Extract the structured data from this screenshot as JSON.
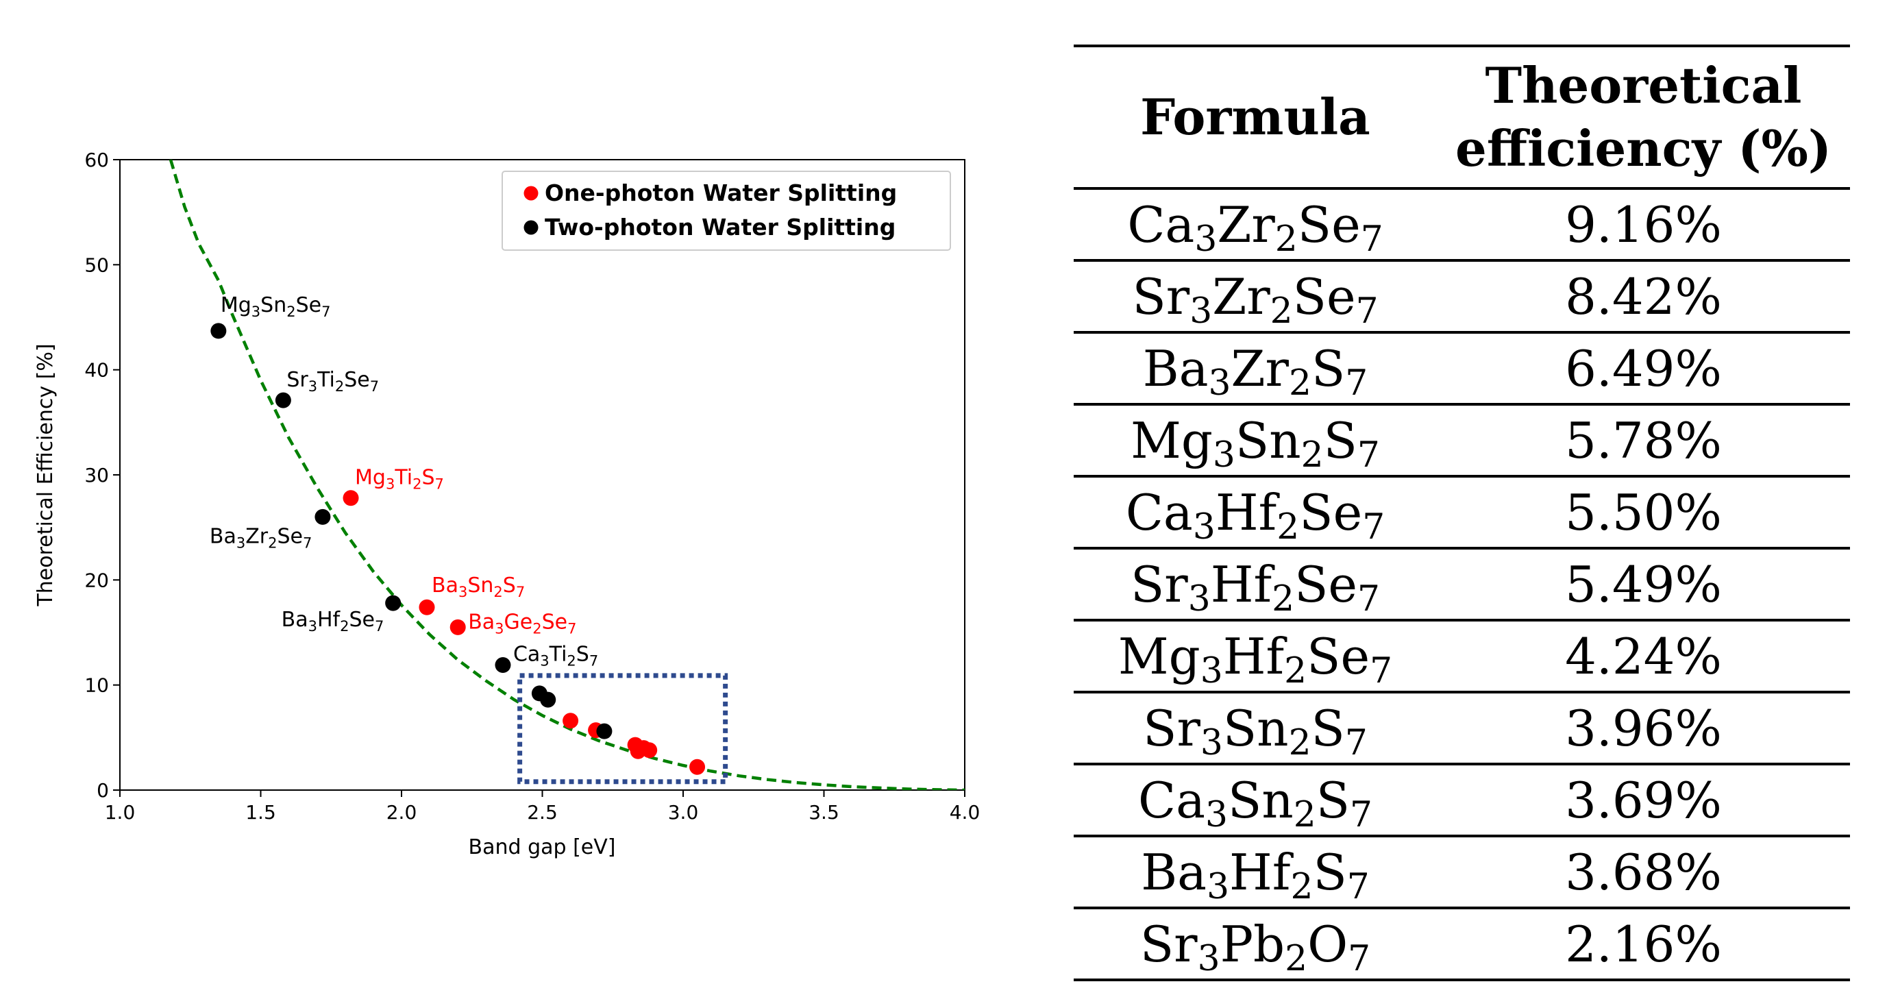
{
  "chart_data": {
    "type": "scatter",
    "xlabel": "Band gap [eV]",
    "ylabel": "Theoretical Efficiency [%]",
    "xlim": [
      1.0,
      4.0
    ],
    "ylim": [
      0,
      60
    ],
    "xticks": [
      "1.0",
      "1.5",
      "2.0",
      "2.5",
      "3.0",
      "3.5",
      "4.0"
    ],
    "yticks": [
      "0",
      "10",
      "20",
      "30",
      "40",
      "50",
      "60"
    ],
    "legend": {
      "placement": "top-right",
      "entries": [
        {
          "label": "One-photon Water Splitting",
          "color": "#ff0000"
        },
        {
          "label": "Two-photon Water Splitting",
          "color": "#000000"
        }
      ]
    },
    "curve": {
      "name": "theoretical limit",
      "style": "dashed",
      "color": "#008000",
      "x": [
        1.18,
        1.23,
        1.28,
        1.3,
        1.35,
        1.4,
        1.5,
        1.6,
        1.7,
        1.8,
        1.9,
        2.0,
        2.1,
        2.2,
        2.3,
        2.4,
        2.5,
        2.6,
        2.7,
        2.8,
        2.9,
        3.0,
        3.1,
        3.2,
        3.3,
        3.4,
        3.5,
        3.6,
        3.7,
        3.8,
        3.9,
        4.0
      ],
      "y": [
        60.0,
        55.5,
        52.0,
        51.0,
        48.5,
        45.2,
        39.0,
        33.5,
        28.8,
        24.5,
        20.8,
        17.6,
        14.8,
        12.4,
        10.4,
        8.6,
        7.1,
        5.8,
        4.7,
        3.8,
        3.0,
        2.35,
        1.8,
        1.35,
        1.0,
        0.72,
        0.5,
        0.32,
        0.2,
        0.1,
        0.04,
        0.0
      ]
    },
    "series": [
      {
        "name": "One-photon Water Splitting",
        "color": "#ff0000",
        "points": [
          {
            "x": 1.82,
            "y": 27.8,
            "label": "Mg3Ti2S7"
          },
          {
            "x": 2.09,
            "y": 17.4,
            "label": "Ba3Sn2S7"
          },
          {
            "x": 2.2,
            "y": 15.5,
            "label": "Ba3Ge2Se7"
          },
          {
            "x": 2.6,
            "y": 6.6,
            "label": ""
          },
          {
            "x": 2.69,
            "y": 5.7,
            "label": ""
          },
          {
            "x": 2.83,
            "y": 4.3,
            "label": ""
          },
          {
            "x": 2.84,
            "y": 3.7,
            "label": ""
          },
          {
            "x": 2.86,
            "y": 4.0,
            "label": ""
          },
          {
            "x": 2.88,
            "y": 3.8,
            "label": ""
          },
          {
            "x": 3.05,
            "y": 2.2,
            "label": ""
          }
        ]
      },
      {
        "name": "Two-photon Water Splitting",
        "color": "#000000",
        "points": [
          {
            "x": 1.35,
            "y": 43.7,
            "label": "Mg3Sn2Se7"
          },
          {
            "x": 1.58,
            "y": 37.1,
            "label": "Sr3Ti2Se7"
          },
          {
            "x": 1.72,
            "y": 26.0,
            "label": "Ba3Zr2Se7"
          },
          {
            "x": 1.97,
            "y": 17.8,
            "label": "Ba3Hf2Se7"
          },
          {
            "x": 2.36,
            "y": 11.9,
            "label": "Ca3Ti2S7"
          },
          {
            "x": 2.49,
            "y": 9.2,
            "label": ""
          },
          {
            "x": 2.52,
            "y": 8.6,
            "label": ""
          },
          {
            "x": 2.72,
            "y": 5.6,
            "label": ""
          }
        ]
      }
    ],
    "highlight_box": {
      "x": [
        2.42,
        3.15
      ],
      "y": [
        0.8,
        10.9
      ],
      "color": "#2e4a8e",
      "style": "dotted"
    }
  },
  "table": {
    "headers": [
      "Formula",
      "Theoretical efficiency (%)"
    ],
    "rows": [
      {
        "formula": [
          [
            "Ca",
            ""
          ],
          [
            "3",
            "sub"
          ],
          [
            "Zr",
            ""
          ],
          [
            "2",
            "sub"
          ],
          [
            "Se",
            ""
          ],
          [
            "7",
            "sub"
          ]
        ],
        "efficiency": "9.16%"
      },
      {
        "formula": [
          [
            "Sr",
            ""
          ],
          [
            "3",
            "sub"
          ],
          [
            "Zr",
            ""
          ],
          [
            "2",
            "sub"
          ],
          [
            "Se",
            ""
          ],
          [
            "7",
            "sub"
          ]
        ],
        "efficiency": "8.42%"
      },
      {
        "formula": [
          [
            "Ba",
            ""
          ],
          [
            "3",
            "sub"
          ],
          [
            "Zr",
            ""
          ],
          [
            "2",
            "sub"
          ],
          [
            "S",
            ""
          ],
          [
            "7",
            "sub"
          ]
        ],
        "efficiency": "6.49%"
      },
      {
        "formula": [
          [
            "Mg",
            ""
          ],
          [
            "3",
            "sub"
          ],
          [
            "Sn",
            ""
          ],
          [
            "2",
            "sub"
          ],
          [
            "S",
            ""
          ],
          [
            "7",
            "sub"
          ]
        ],
        "efficiency": "5.78%"
      },
      {
        "formula": [
          [
            "Ca",
            ""
          ],
          [
            "3",
            "sub"
          ],
          [
            "Hf",
            ""
          ],
          [
            "2",
            "sub"
          ],
          [
            "Se",
            ""
          ],
          [
            "7",
            "sub"
          ]
        ],
        "efficiency": "5.50%"
      },
      {
        "formula": [
          [
            "Sr",
            ""
          ],
          [
            "3",
            "sub"
          ],
          [
            "Hf",
            ""
          ],
          [
            "2",
            "sub"
          ],
          [
            "Se",
            ""
          ],
          [
            "7",
            "sub"
          ]
        ],
        "efficiency": "5.49%"
      },
      {
        "formula": [
          [
            "Mg",
            ""
          ],
          [
            "3",
            "sub"
          ],
          [
            "Hf",
            ""
          ],
          [
            "2",
            "sub"
          ],
          [
            "Se",
            ""
          ],
          [
            "7",
            "sub"
          ]
        ],
        "efficiency": "4.24%"
      },
      {
        "formula": [
          [
            "Sr",
            ""
          ],
          [
            "3",
            "sub"
          ],
          [
            "Sn",
            ""
          ],
          [
            "2",
            "sub"
          ],
          [
            "S",
            ""
          ],
          [
            "7",
            "sub"
          ]
        ],
        "efficiency": "3.96%"
      },
      {
        "formula": [
          [
            "Ca",
            ""
          ],
          [
            "3",
            "sub"
          ],
          [
            "Sn",
            ""
          ],
          [
            "2",
            "sub"
          ],
          [
            "S",
            ""
          ],
          [
            "7",
            "sub"
          ]
        ],
        "efficiency": "3.69%"
      },
      {
        "formula": [
          [
            "Ba",
            ""
          ],
          [
            "3",
            "sub"
          ],
          [
            "Hf",
            ""
          ],
          [
            "2",
            "sub"
          ],
          [
            "S",
            ""
          ],
          [
            "7",
            "sub"
          ]
        ],
        "efficiency": "3.68%"
      },
      {
        "formula": [
          [
            "Sr",
            ""
          ],
          [
            "3",
            "sub"
          ],
          [
            "Pb",
            ""
          ],
          [
            "2",
            "sub"
          ],
          [
            "O",
            ""
          ],
          [
            "7",
            "sub"
          ]
        ],
        "efficiency": "2.16%"
      }
    ]
  }
}
